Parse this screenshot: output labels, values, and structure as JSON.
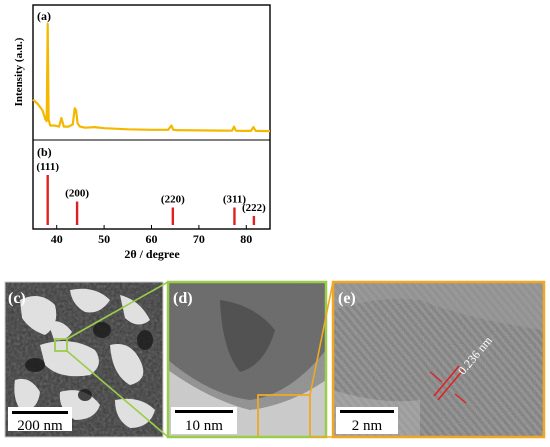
{
  "panel_labels": {
    "a": "(a)",
    "b": "(b)",
    "c": "(c)",
    "d": "(d)",
    "e": "(e)"
  },
  "chart_data": [
    {
      "type": "line",
      "panel": "(a)",
      "ylabel": "Intensity (a.u.)",
      "xlabel": "2θ / degree",
      "xlim": [
        35,
        85
      ],
      "x_ticks": [
        40,
        50,
        60,
        70,
        80
      ],
      "grid": false,
      "line_color": "#f5b800",
      "series": [
        {
          "x": [
            35.0,
            36.0,
            37.0,
            37.6,
            37.9,
            38.1,
            38.3,
            38.6,
            39.5,
            40.5,
            41.0,
            41.5,
            42.5,
            43.4,
            43.8,
            44.1,
            44.4,
            44.9,
            46.0,
            48.0,
            50.0,
            55.0,
            60.0,
            63.5,
            64.2,
            64.6,
            65.4,
            70.0,
            75.0,
            77.0,
            77.4,
            77.8,
            79.0,
            81.0,
            81.5,
            82.0,
            85.0
          ],
          "values": [
            0.3,
            0.26,
            0.2,
            0.12,
            0.1,
            1.0,
            0.12,
            0.06,
            0.06,
            0.05,
            0.13,
            0.05,
            0.05,
            0.07,
            0.22,
            0.2,
            0.08,
            0.05,
            0.04,
            0.045,
            0.035,
            0.025,
            0.02,
            0.02,
            0.06,
            0.02,
            0.018,
            0.015,
            0.013,
            0.012,
            0.05,
            0.012,
            0.01,
            0.01,
            0.045,
            0.01,
            0.008
          ]
        }
      ]
    },
    {
      "type": "bar",
      "panel": "(b)",
      "xlabel": "2θ / degree",
      "xlim": [
        35,
        85
      ],
      "bar_color": "#e02020",
      "x": [
        38.1,
        44.3,
        64.5,
        77.5,
        81.6
      ],
      "values": [
        1.0,
        0.47,
        0.35,
        0.35,
        0.18
      ],
      "labels": [
        "(111)",
        "(200)",
        "(220)",
        "(311)",
        "(222)"
      ]
    }
  ],
  "images": {
    "c": {
      "scale_bar": "200 nm"
    },
    "d": {
      "scale_bar": "10 nm"
    },
    "e": {
      "scale_bar": "2 nm",
      "annotation": "0.236 nm"
    }
  },
  "colors": {
    "green": "#9acd4a",
    "orange": "#f0a824",
    "red": "#e02020",
    "xrd": "#f5b800"
  }
}
